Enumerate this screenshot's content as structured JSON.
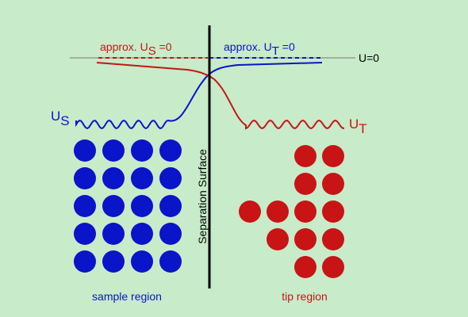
{
  "colors": {
    "background": "#c8ebca",
    "sample": "#0a14c8",
    "tip": "#c81414",
    "divider": "#000000",
    "zero_line": "#777777"
  },
  "labels": {
    "zero": "U=0",
    "approx_s_prefix": "approx. U",
    "approx_s_sub": "S",
    "approx_s_suffix": " =0",
    "approx_t_prefix": "approx. U",
    "approx_t_sub": "T",
    "approx_t_suffix": " =0",
    "us_main": "U",
    "us_sub": "S",
    "ut_main": "U",
    "ut_sub": "T",
    "separation": "Separation Surface",
    "sample_region": "sample region",
    "tip_region": "tip region"
  },
  "sample_atoms": {
    "rows": 5,
    "cols": 4
  },
  "tip_atoms": {
    "row_counts": [
      2,
      2,
      4,
      3,
      2
    ]
  }
}
